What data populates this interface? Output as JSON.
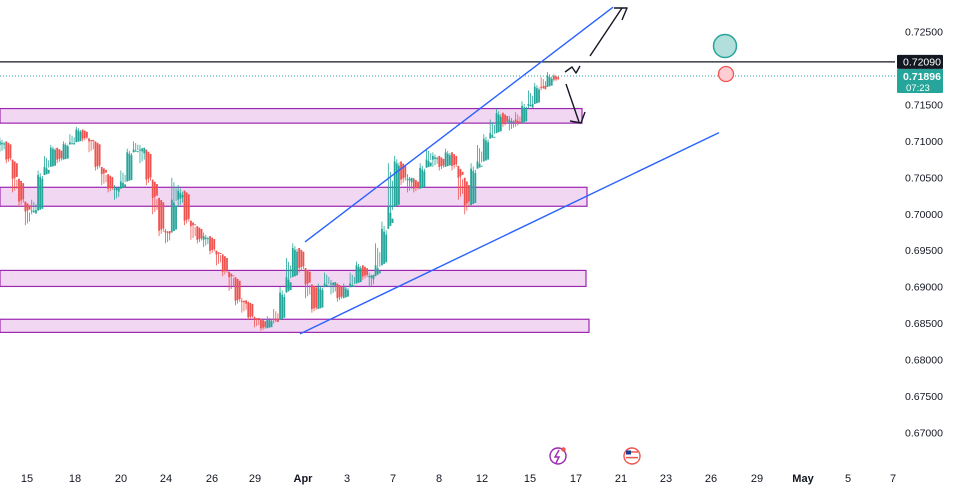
{
  "chart_data": {
    "type": "candlestick",
    "instrument_scale": "price",
    "y_axis": {
      "ticks": [
        "0.72500",
        "0.72000",
        "0.71500",
        "0.71000",
        "0.70500",
        "0.70000",
        "0.69500",
        "0.69000",
        "0.68500",
        "0.68000",
        "0.67500",
        "0.67000"
      ],
      "range": [
        0.6665,
        0.7275
      ]
    },
    "x_axis": {
      "ticks": [
        "15",
        "18",
        "20",
        "24",
        "26",
        "29",
        "Apr",
        "3",
        "7",
        "8",
        "12",
        "15",
        "17",
        "21",
        "23",
        "26",
        "29",
        "May",
        "5",
        "7"
      ],
      "bold_ticks": [
        "Apr",
        "May"
      ]
    },
    "price_labels": {
      "resistance_line": "0.72090",
      "current_price": "0.71896",
      "countdown": "07:23"
    },
    "horizontal_levels": {
      "resistance": 0.7209,
      "current": 0.71896
    },
    "zones": [
      {
        "top": 0.7145,
        "bottom": 0.7125
      },
      {
        "top": 0.7037,
        "bottom": 0.7011
      },
      {
        "top": 0.6923,
        "bottom": 0.6901
      },
      {
        "top": 0.6856,
        "bottom": 0.6838
      }
    ],
    "channel": {
      "upper": [
        [
          0.6962,
          0.7284
        ]
      ],
      "lower": [
        [
          0.6836,
          0.7112
        ]
      ]
    },
    "candle_path": [
      [
        0.7105,
        0.7085
      ],
      [
        0.709,
        0.707
      ],
      [
        0.7055,
        0.703
      ],
      [
        0.704,
        0.701
      ],
      [
        0.701,
        0.6985
      ],
      [
        0.702,
        0.7
      ],
      [
        0.706,
        0.7035
      ],
      [
        0.708,
        0.706
      ],
      [
        0.7095,
        0.708
      ],
      [
        0.709,
        0.707
      ],
      [
        0.71,
        0.7085
      ],
      [
        0.711,
        0.7095
      ],
      [
        0.712,
        0.7105
      ],
      [
        0.7115,
        0.71
      ],
      [
        0.7105,
        0.7085
      ],
      [
        0.708,
        0.706
      ],
      [
        0.706,
        0.704
      ],
      [
        0.705,
        0.703
      ],
      [
        0.704,
        0.702
      ],
      [
        0.706,
        0.704
      ],
      [
        0.709,
        0.707
      ],
      [
        0.71,
        0.7085
      ],
      [
        0.7095,
        0.707
      ],
      [
        0.707,
        0.704
      ],
      [
        0.703,
        0.7
      ],
      [
        0.7,
        0.697
      ],
      [
        0.698,
        0.696
      ],
      [
        0.705,
        0.701
      ],
      [
        0.704,
        0.701
      ],
      [
        0.701,
        0.6985
      ],
      [
        0.699,
        0.6965
      ],
      [
        0.698,
        0.696
      ],
      [
        0.6975,
        0.6955
      ],
      [
        0.6965,
        0.6945
      ],
      [
        0.695,
        0.693
      ],
      [
        0.694,
        0.6915
      ],
      [
        0.692,
        0.6895
      ],
      [
        0.69,
        0.6875
      ],
      [
        0.6885,
        0.6865
      ],
      [
        0.687,
        0.6855
      ],
      [
        0.686,
        0.6845
      ],
      [
        0.6855,
        0.684
      ],
      [
        0.686,
        0.6845
      ],
      [
        0.687,
        0.685
      ],
      [
        0.69,
        0.687
      ],
      [
        0.694,
        0.6905
      ],
      [
        0.696,
        0.6935
      ],
      [
        0.6945,
        0.692
      ],
      [
        0.691,
        0.6885
      ],
      [
        0.6885,
        0.6865
      ],
      [
        0.6905,
        0.6885
      ],
      [
        0.692,
        0.69
      ],
      [
        0.691,
        0.689
      ],
      [
        0.69,
        0.688
      ],
      [
        0.6905,
        0.6885
      ],
      [
        0.692,
        0.69
      ],
      [
        0.6935,
        0.6915
      ],
      [
        0.693,
        0.691
      ],
      [
        0.692,
        0.69
      ],
      [
        0.696,
        0.692
      ],
      [
        0.699,
        0.695
      ],
      [
        0.707,
        0.699
      ],
      [
        0.708,
        0.705
      ],
      [
        0.707,
        0.704
      ],
      [
        0.7055,
        0.703
      ],
      [
        0.705,
        0.703
      ],
      [
        0.707,
        0.7045
      ],
      [
        0.709,
        0.707
      ],
      [
        0.7085,
        0.7065
      ],
      [
        0.708,
        0.706
      ],
      [
        0.709,
        0.707
      ],
      [
        0.7085,
        0.706
      ],
      [
        0.706,
        0.702
      ],
      [
        0.705,
        0.7
      ],
      [
        0.707,
        0.704
      ],
      [
        0.7095,
        0.7065
      ],
      [
        0.711,
        0.7085
      ],
      [
        0.713,
        0.7105
      ],
      [
        0.7145,
        0.712
      ],
      [
        0.714,
        0.712
      ],
      [
        0.7135,
        0.7115
      ],
      [
        0.714,
        0.712
      ],
      [
        0.7155,
        0.713
      ],
      [
        0.717,
        0.7145
      ],
      [
        0.718,
        0.716
      ],
      [
        0.7188,
        0.717
      ],
      [
        0.7195,
        0.7175
      ],
      [
        0.7192,
        0.7182
      ]
    ]
  }
}
